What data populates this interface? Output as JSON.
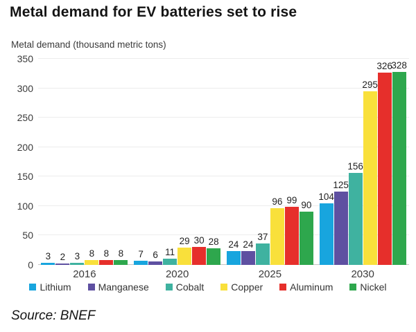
{
  "title": "Metal demand for EV batteries set to rise",
  "source": "Source: BNEF",
  "chart_data": {
    "type": "bar",
    "title": "Metal demand for EV batteries set to rise",
    "ylabel": "Metal demand (thousand metric tons)",
    "xlabel": "",
    "categories": [
      "2016",
      "2020",
      "2025",
      "2030"
    ],
    "series": [
      {
        "name": "Lithium",
        "color": "#18A5DE",
        "values": [
          3,
          7,
          24,
          104
        ]
      },
      {
        "name": "Manganese",
        "color": "#5E50A1",
        "values": [
          2,
          6,
          24,
          125
        ]
      },
      {
        "name": "Cobalt",
        "color": "#3FB2A0",
        "values": [
          3,
          11,
          37,
          156
        ]
      },
      {
        "name": "Copper",
        "color": "#F9E03B",
        "values": [
          8,
          29,
          96,
          295
        ]
      },
      {
        "name": "Aluminum",
        "color": "#E62F2B",
        "values": [
          8,
          30,
          99,
          326
        ]
      },
      {
        "name": "Nickel",
        "color": "#2EA74D",
        "values": [
          8,
          28,
          90,
          328
        ]
      }
    ],
    "ylim": [
      0,
      350
    ],
    "yticks": [
      0,
      50,
      100,
      150,
      200,
      250,
      300,
      350
    ],
    "grid": true,
    "show_value_labels": true,
    "legend_position": "bottom"
  }
}
